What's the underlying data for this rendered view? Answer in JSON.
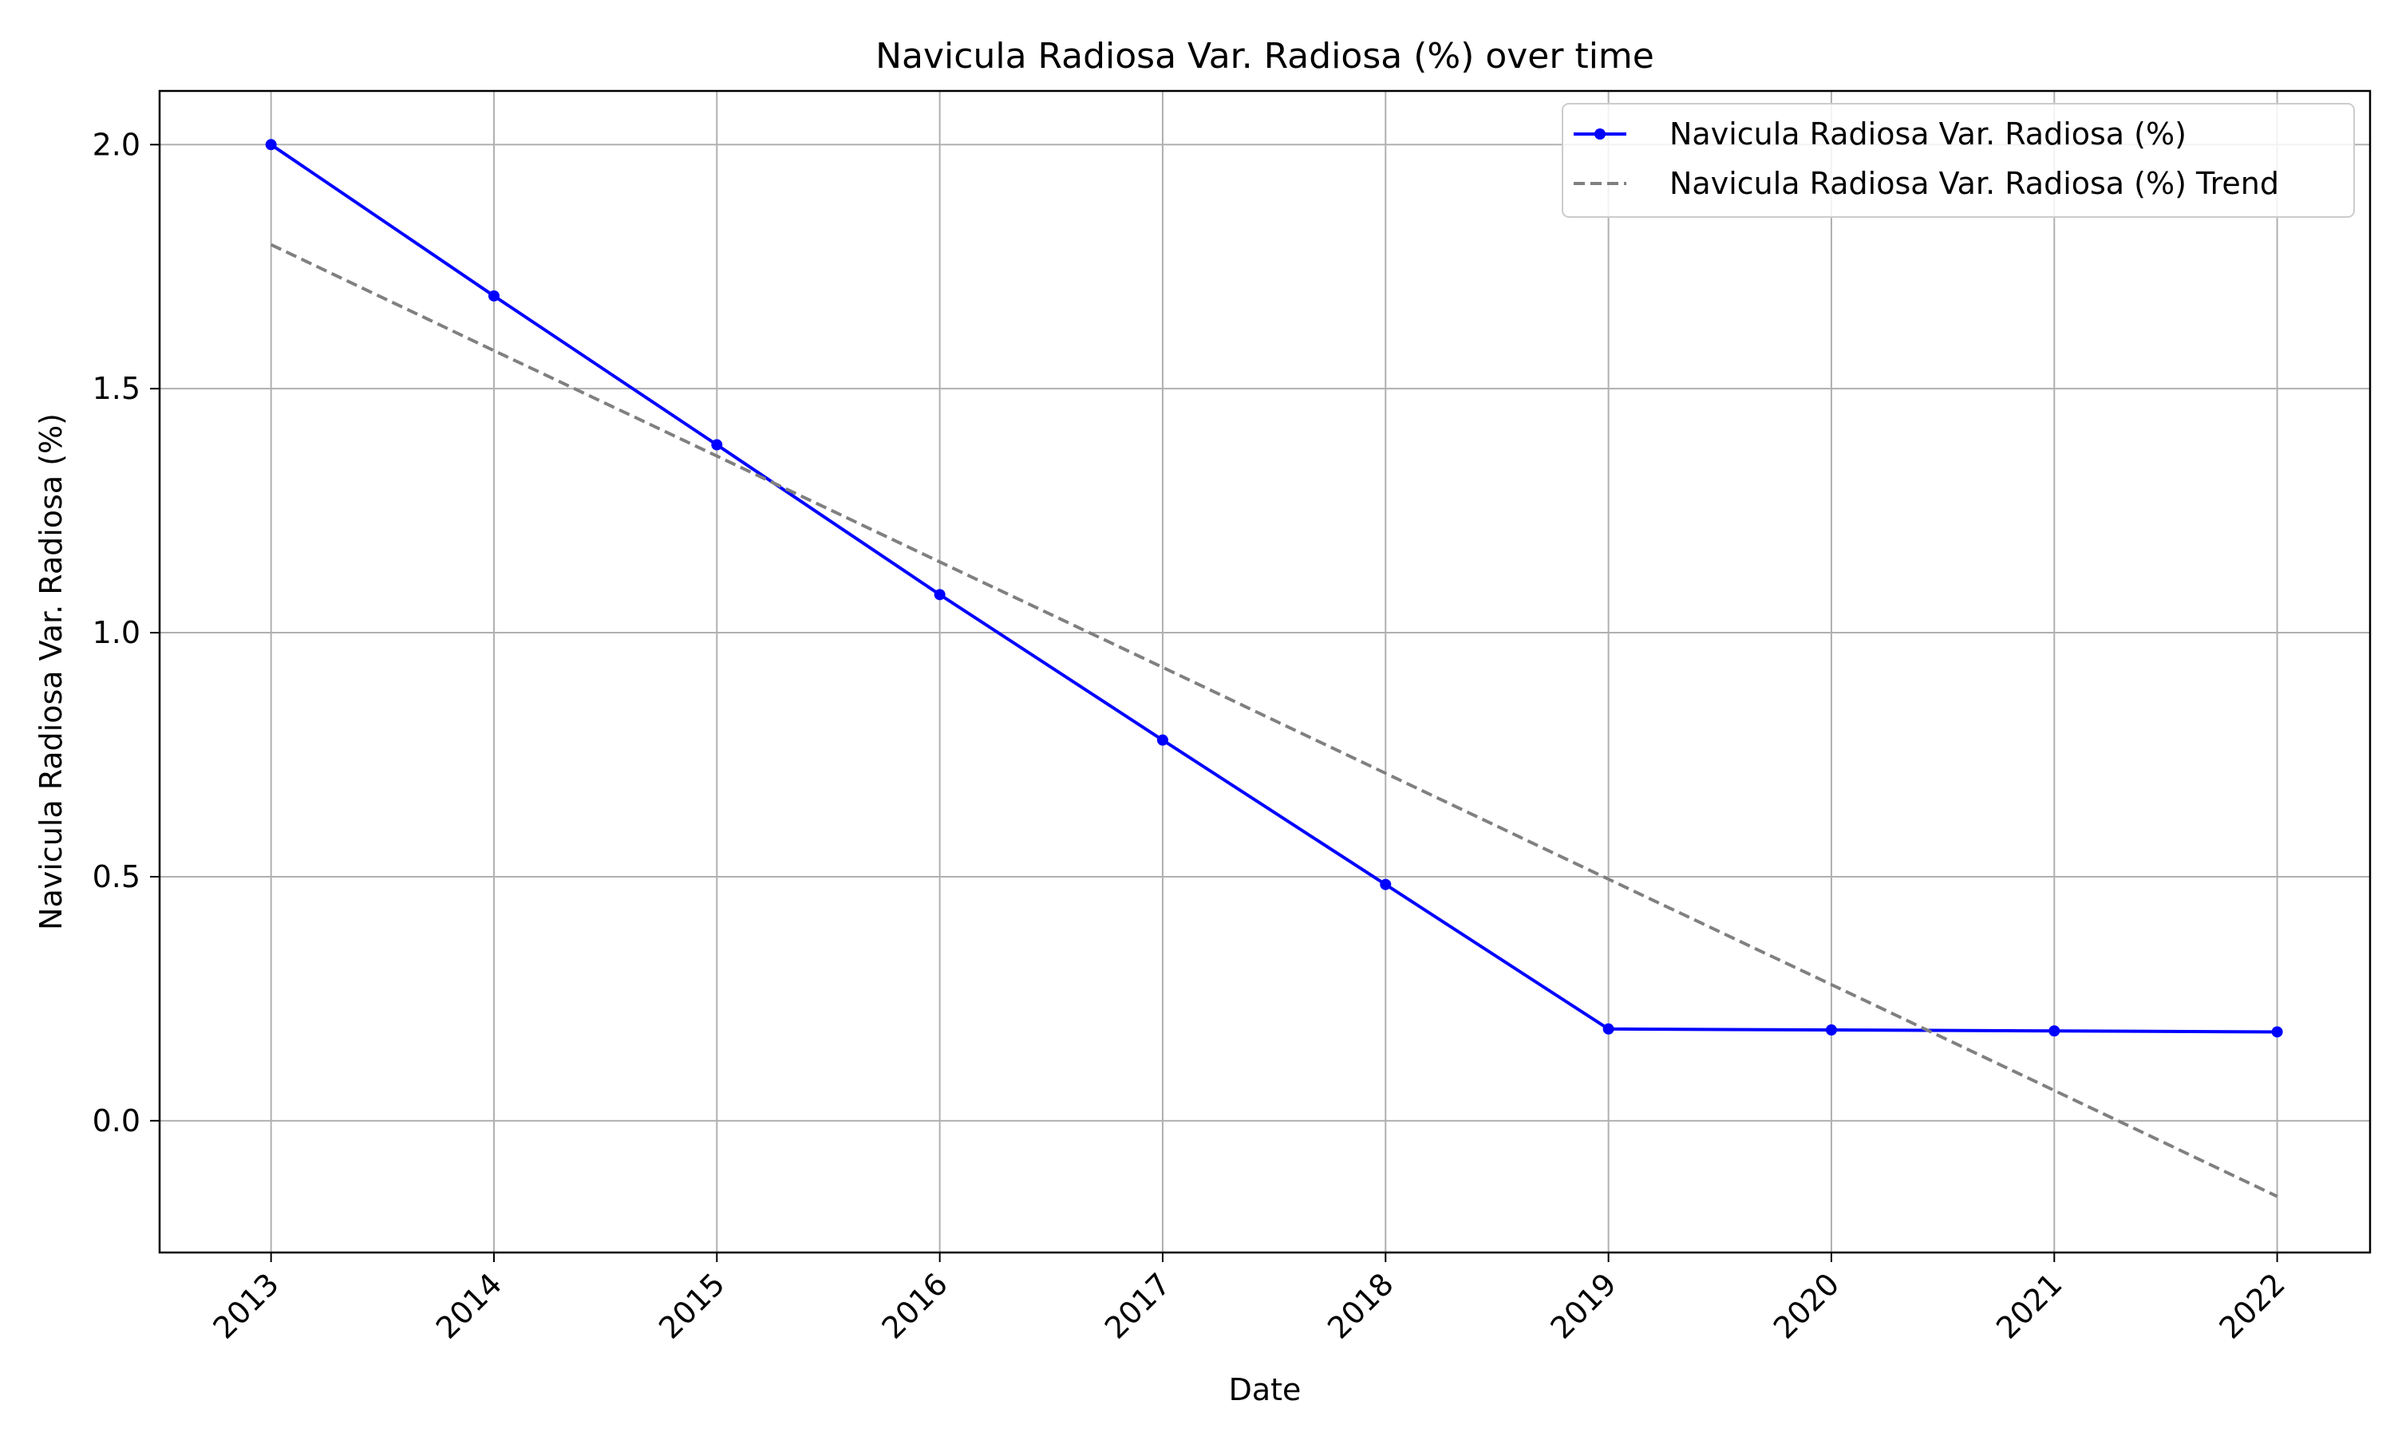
{
  "chart_data": {
    "type": "line",
    "title": "Navicula Radiosa Var. Radiosa (%) over time",
    "xlabel": "Date",
    "ylabel": "Navicula Radiosa Var. Radiosa (%)",
    "x": [
      "2013",
      "2014",
      "2015",
      "2016",
      "2017",
      "2018",
      "2019",
      "2020",
      "2021",
      "2022"
    ],
    "xlim": [
      "2012-07",
      "2022-06"
    ],
    "ylim": [
      -0.27,
      2.11
    ],
    "yticks": [
      0.0,
      0.5,
      1.0,
      1.5,
      2.0
    ],
    "ytick_labels": [
      "0.0",
      "0.5",
      "1.0",
      "1.5",
      "2.0"
    ],
    "grid": true,
    "legend_position": "top-right",
    "series": [
      {
        "name": "Navicula Radiosa Var. Radiosa (%)",
        "color": "#0000ff",
        "style": "solid",
        "marker": "circle",
        "values": [
          2.0,
          1.69,
          1.385,
          1.078,
          0.78,
          0.484,
          0.188,
          0.186,
          0.184,
          0.182
        ]
      },
      {
        "name": "Navicula Radiosa Var. Radiosa (%) Trend",
        "color": "#808080",
        "style": "dashed",
        "marker": "none",
        "values": [
          1.795,
          1.578,
          1.362,
          1.145,
          0.929,
          0.712,
          0.495,
          0.279,
          0.062,
          -0.155
        ]
      }
    ]
  }
}
